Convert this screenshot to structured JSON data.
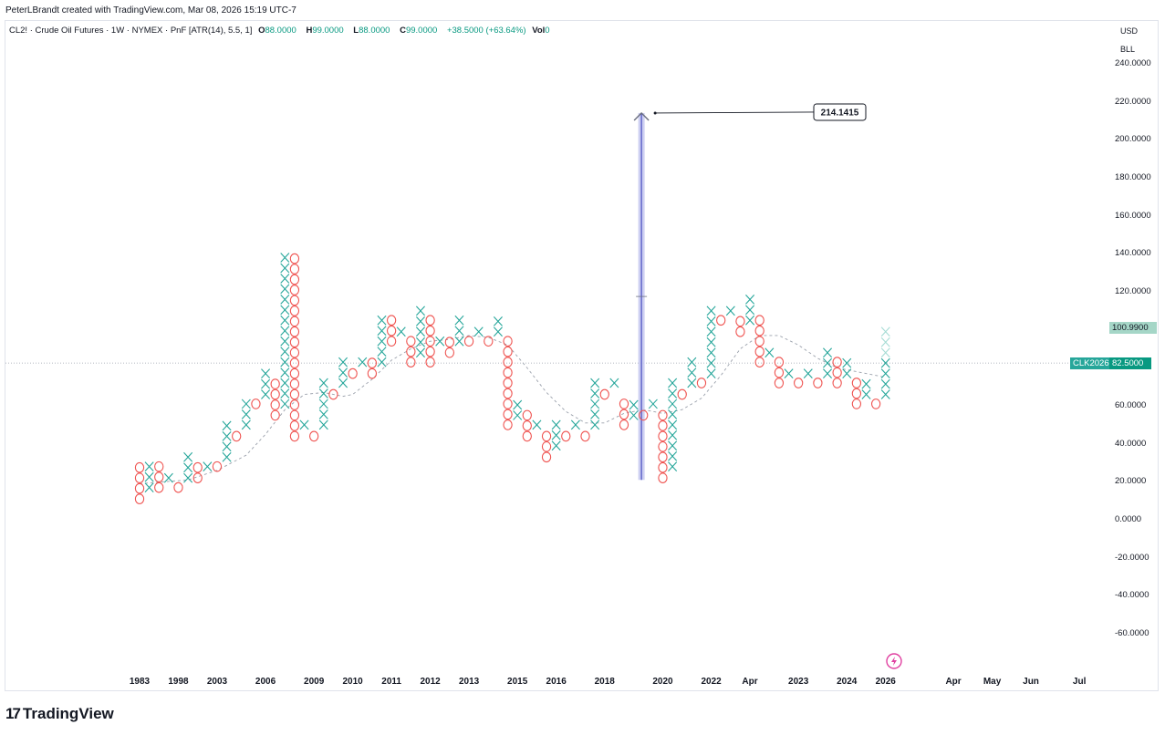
{
  "header": {
    "credit": "PeterLBrandt created with TradingView.com, Mar 08, 2026 15:19 UTC-7"
  },
  "legend": {
    "symbol": "CL2! · Crude Oil Futures · 1W · NYMEX · PnF [ATR(14), 5.5, 1]",
    "o_key": "O",
    "o_val": "88.0000",
    "h_key": "H",
    "h_val": "99.0000",
    "l_key": "L",
    "l_val": "88.0000",
    "c_key": "C",
    "c_val": "99.0000",
    "change": "+38.5000 (+63.64%)",
    "vol_key": "Vol",
    "vol_val": "0"
  },
  "axis": {
    "currency": "USD",
    "unit": "BLL"
  },
  "annotation": {
    "target_label": "214.1415"
  },
  "badges": {
    "last_price": "100.9900",
    "ref_symbol": "CLK2026",
    "ref_price": "82.5000"
  },
  "brand": {
    "name": "TradingView"
  },
  "colors": {
    "x": "#26a69a",
    "o": "#ef5350",
    "arrow": "#5b5fc7",
    "arrow_fill": "#c5c8f0"
  },
  "chart_data": {
    "type": "point-and-figure",
    "yticks": [
      240,
      220,
      200,
      180,
      160,
      140,
      120,
      100,
      80,
      60,
      40,
      20,
      0,
      -20,
      -40,
      -60
    ],
    "ylim": [
      -67,
      248
    ],
    "x_tick_labels": [
      "1983",
      "1998",
      "2003",
      "2006",
      "2009",
      "2010",
      "2011",
      "2012",
      "2013",
      "2015",
      "2016",
      "2018",
      "2020",
      "2022",
      "Apr",
      "2023",
      "2024",
      "2026",
      "Apr",
      "May",
      "Jun",
      "Jul"
    ],
    "x_tick_cols": [
      0,
      4,
      8,
      13,
      18,
      22,
      26,
      30,
      34,
      39,
      43,
      48,
      54,
      59,
      63,
      68,
      73,
      77,
      84,
      88,
      92,
      97
    ],
    "reference_price": 82.5,
    "last_price": 100.99,
    "arrow": {
      "col": 51.8,
      "from": 21,
      "to": 214.1415
    },
    "columns": [
      {
        "t": "O",
        "lo": 11,
        "hi": 28
      },
      {
        "t": "X",
        "lo": 17,
        "hi": 33
      },
      {
        "t": "O",
        "lo": 17,
        "hi": 28
      },
      {
        "t": "X",
        "lo": 22,
        "hi": 22
      },
      {
        "t": "O",
        "lo": 17,
        "hi": 17
      },
      {
        "t": "X",
        "lo": 22,
        "hi": 33
      },
      {
        "t": "O",
        "lo": 22,
        "hi": 28
      },
      {
        "t": "X",
        "lo": 28,
        "hi": 33
      },
      {
        "t": "O",
        "lo": 28,
        "hi": 28
      },
      {
        "t": "X",
        "lo": 33,
        "hi": 50
      },
      {
        "t": "O",
        "lo": 44,
        "hi": 44
      },
      {
        "t": "X",
        "lo": 50,
        "hi": 66
      },
      {
        "t": "O",
        "lo": 61,
        "hi": 61
      },
      {
        "t": "X",
        "lo": 66,
        "hi": 77
      },
      {
        "t": "O",
        "lo": 55,
        "hi": 72
      },
      {
        "t": "X",
        "lo": 61,
        "hi": 143
      },
      {
        "t": "O",
        "lo": 44,
        "hi": 138
      },
      {
        "t": "X",
        "lo": 50,
        "hi": 50
      },
      {
        "t": "O",
        "lo": 44,
        "hi": 44
      },
      {
        "t": "X",
        "lo": 50,
        "hi": 72
      },
      {
        "t": "O",
        "lo": 66,
        "hi": 66
      },
      {
        "t": "X",
        "lo": 72,
        "hi": 83
      },
      {
        "t": "O",
        "lo": 77,
        "hi": 77
      },
      {
        "t": "X",
        "lo": 83,
        "hi": 88
      },
      {
        "t": "O",
        "lo": 77,
        "hi": 83
      },
      {
        "t": "X",
        "lo": 83,
        "hi": 110
      },
      {
        "t": "O",
        "lo": 94,
        "hi": 105
      },
      {
        "t": "X",
        "lo": 99,
        "hi": 99
      },
      {
        "t": "O",
        "lo": 83,
        "hi": 94
      },
      {
        "t": "X",
        "lo": 88,
        "hi": 110
      },
      {
        "t": "O",
        "lo": 83,
        "hi": 105
      },
      {
        "t": "X",
        "lo": 94,
        "hi": 99
      },
      {
        "t": "O",
        "lo": 88,
        "hi": 94
      },
      {
        "t": "X",
        "lo": 94,
        "hi": 105
      },
      {
        "t": "O",
        "lo": 94,
        "hi": 99
      },
      {
        "t": "X",
        "lo": 99,
        "hi": 99
      },
      {
        "t": "O",
        "lo": 94,
        "hi": 94
      },
      {
        "t": "X",
        "lo": 99,
        "hi": 105
      },
      {
        "t": "O",
        "lo": 50,
        "hi": 99
      },
      {
        "t": "X",
        "lo": 55,
        "hi": 61
      },
      {
        "t": "O",
        "lo": 44,
        "hi": 55
      },
      {
        "t": "X",
        "lo": 50,
        "hi": 50
      },
      {
        "t": "O",
        "lo": 33,
        "hi": 44
      },
      {
        "t": "X",
        "lo": 39,
        "hi": 50
      },
      {
        "t": "O",
        "lo": 44,
        "hi": 44
      },
      {
        "t": "X",
        "lo": 50,
        "hi": 50
      },
      {
        "t": "O",
        "lo": 44,
        "hi": 44
      },
      {
        "t": "X",
        "lo": 50,
        "hi": 72
      },
      {
        "t": "O",
        "lo": 66,
        "hi": 66
      },
      {
        "t": "X",
        "lo": 72,
        "hi": 72
      },
      {
        "t": "O",
        "lo": 50,
        "hi": 66
      },
      {
        "t": "X",
        "lo": 55,
        "hi": 61
      },
      {
        "t": "O",
        "lo": 55,
        "hi": 55
      },
      {
        "t": "X",
        "lo": 61,
        "hi": 61
      },
      {
        "t": "O",
        "lo": 22,
        "hi": 55
      },
      {
        "t": "X",
        "lo": 28,
        "hi": 72
      },
      {
        "t": "O",
        "lo": 66,
        "hi": 66
      },
      {
        "t": "X",
        "lo": 72,
        "hi": 83
      },
      {
        "t": "O",
        "lo": 72,
        "hi": 77
      },
      {
        "t": "X",
        "lo": 77,
        "hi": 110
      },
      {
        "t": "O",
        "lo": 105,
        "hi": 105
      },
      {
        "t": "X",
        "lo": 110,
        "hi": 110
      },
      {
        "t": "O",
        "lo": 99,
        "hi": 105
      },
      {
        "t": "X",
        "lo": 105,
        "hi": 116
      },
      {
        "t": "O",
        "lo": 83,
        "hi": 110
      },
      {
        "t": "X",
        "lo": 88,
        "hi": 88
      },
      {
        "t": "O",
        "lo": 72,
        "hi": 83
      },
      {
        "t": "X",
        "lo": 77,
        "hi": 77
      },
      {
        "t": "O",
        "lo": 72,
        "hi": 72
      },
      {
        "t": "X",
        "lo": 77,
        "hi": 77
      },
      {
        "t": "O",
        "lo": 72,
        "hi": 72
      },
      {
        "t": "X",
        "lo": 77,
        "hi": 88
      },
      {
        "t": "O",
        "lo": 72,
        "hi": 83
      },
      {
        "t": "X",
        "lo": 77,
        "hi": 83
      },
      {
        "t": "O",
        "lo": 61,
        "hi": 77
      },
      {
        "t": "X",
        "lo": 66,
        "hi": 72
      },
      {
        "t": "O",
        "lo": 61,
        "hi": 66
      },
      {
        "t": "X",
        "lo": 66,
        "hi": 99
      }
    ],
    "moving_average": [
      [
        0,
        19
      ],
      [
        5,
        21
      ],
      [
        8,
        26
      ],
      [
        11,
        34
      ],
      [
        13,
        45
      ],
      [
        15,
        58
      ],
      [
        17,
        66
      ],
      [
        19,
        67
      ],
      [
        21,
        65
      ],
      [
        22,
        66
      ],
      [
        24,
        74
      ],
      [
        26,
        84
      ],
      [
        28,
        90
      ],
      [
        30,
        94
      ],
      [
        32,
        95
      ],
      [
        34,
        97
      ],
      [
        36,
        96
      ],
      [
        38,
        92
      ],
      [
        40,
        80
      ],
      [
        42,
        67
      ],
      [
        44,
        57
      ],
      [
        46,
        51
      ],
      [
        48,
        51
      ],
      [
        50,
        56
      ],
      [
        52,
        58
      ],
      [
        54,
        56
      ],
      [
        56,
        58
      ],
      [
        58,
        64
      ],
      [
        60,
        76
      ],
      [
        62,
        90
      ],
      [
        64,
        97
      ],
      [
        66,
        97
      ],
      [
        68,
        92
      ],
      [
        70,
        85
      ],
      [
        72,
        80
      ],
      [
        74,
        78
      ],
      [
        76,
        76
      ],
      [
        77,
        75
      ]
    ]
  }
}
